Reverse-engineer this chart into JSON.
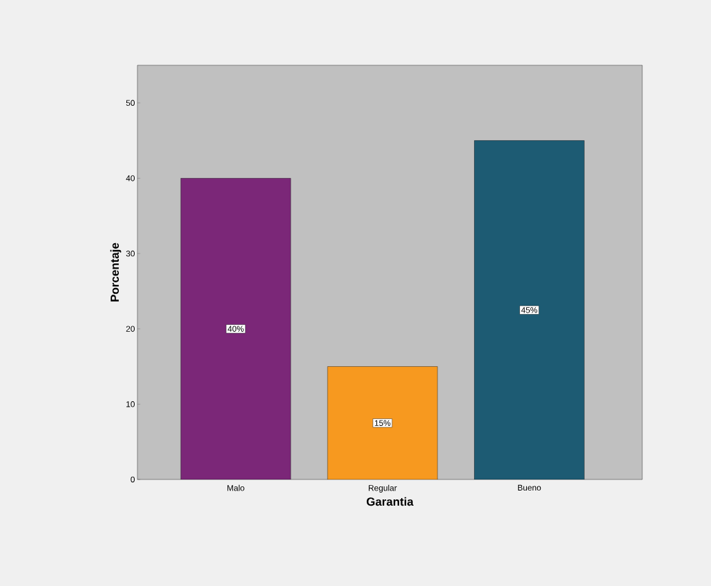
{
  "chart_data": {
    "type": "bar",
    "xlabel": "Garantia",
    "ylabel": "Porcentaje",
    "categories": [
      "Malo",
      "Regular",
      "Bueno"
    ],
    "values": [
      40,
      15,
      45
    ],
    "colors": [
      "#7b2778",
      "#f7991f",
      "#1d5b73"
    ],
    "value_labels": [
      "40%",
      "15%",
      "45%"
    ],
    "ylim": [
      0,
      55
    ],
    "yticks": [
      0,
      10,
      20,
      30,
      40,
      50
    ]
  }
}
